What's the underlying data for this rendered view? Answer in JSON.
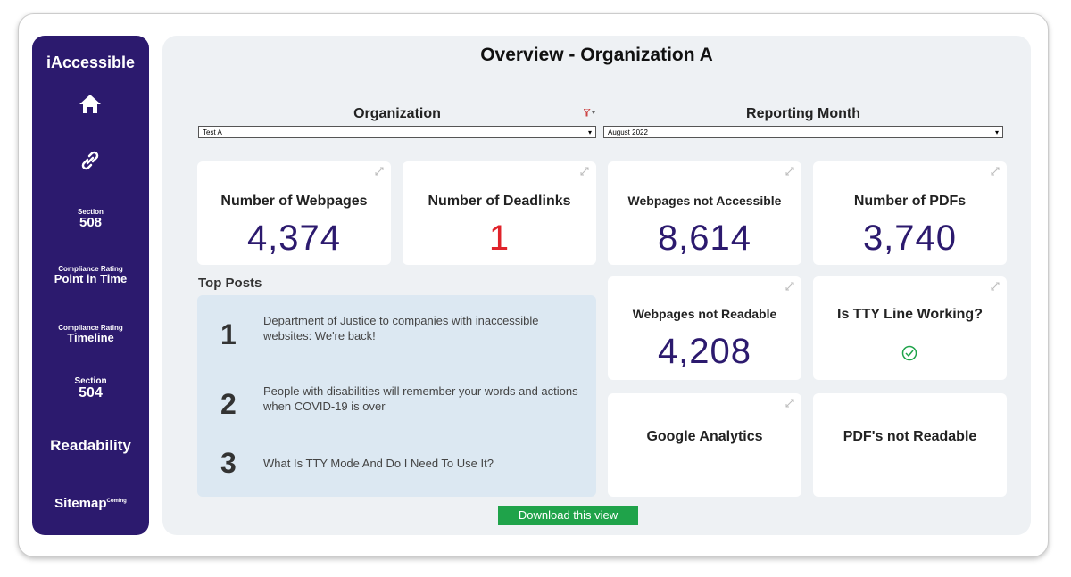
{
  "sidebar": {
    "brand": "iAccessible",
    "items": [
      {
        "small": "Section",
        "label": "508"
      },
      {
        "small": "Compliance Rating",
        "label": "Point in Time"
      },
      {
        "small": "Compliance Rating",
        "label": "Timeline"
      },
      {
        "small": "Section",
        "label": "504"
      },
      {
        "label": "Readability"
      },
      {
        "label": "Sitemap",
        "badge": "Coming"
      }
    ]
  },
  "header": {
    "title": "Overview - Organization A"
  },
  "filters": [
    {
      "label": "Organization",
      "value": "Test A"
    },
    {
      "label": "Reporting Month",
      "value": "August 2022"
    }
  ],
  "cards": [
    {
      "title": "Number of Webpages",
      "value": "4,374"
    },
    {
      "title": "Number of Deadlinks",
      "value": "1"
    },
    {
      "title": "Webpages not Accessible",
      "value": "8,614"
    },
    {
      "title": "Number of PDFs",
      "value": "3,740"
    },
    {
      "title": "Webpages not Readable",
      "value": "4,208"
    },
    {
      "title": "Is TTY Line Working?"
    },
    {
      "title": "Google Analytics"
    },
    {
      "title": "PDF's not Readable"
    }
  ],
  "top_posts": {
    "title": "Top Posts",
    "items": [
      {
        "rank": "1",
        "text": "Department of Justice to companies with inaccessible websites: We're back!"
      },
      {
        "rank": "2",
        "text": "People with disabilities will remember your words and actions when COVID-19 is over"
      },
      {
        "rank": "3",
        "text": "What Is TTY Mode And Do I Need To Use It?"
      }
    ]
  },
  "download_button": "Download this view"
}
